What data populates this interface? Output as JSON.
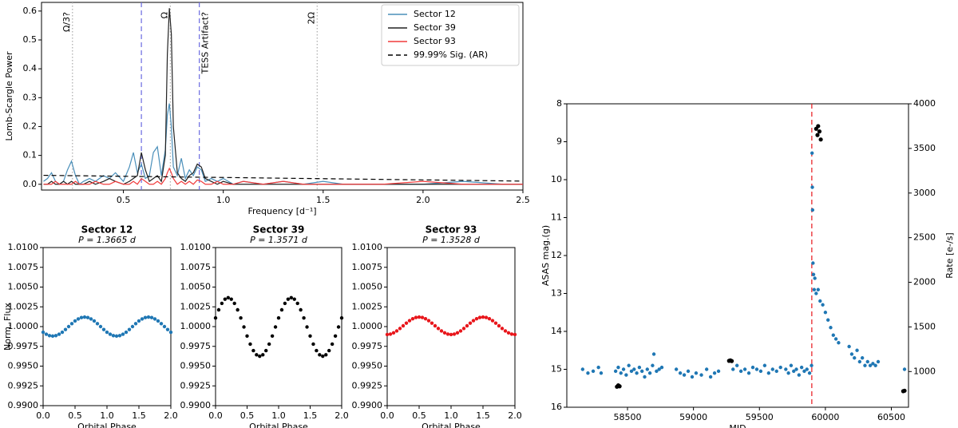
{
  "chart_data": [
    {
      "type": "line",
      "xlabel": "Frequency [d⁻¹]",
      "ylabel": "Lomb-Scargle Power",
      "xlim": [
        0.09,
        2.5
      ],
      "ylim": [
        -0.02,
        0.63
      ],
      "xticks": [
        0.5,
        {
          "value": 1,
          "label": "1.0"
        },
        1.5,
        {
          "value": 2,
          "label": "2.0"
        },
        2.5
      ],
      "yticks": [
        {
          "value": 0,
          "label": "0.0"
        },
        0.1,
        0.2,
        0.3,
        0.4,
        0.5,
        0.6
      ],
      "legend": "upper right",
      "x": [
        0.1,
        0.12,
        0.14,
        0.16,
        0.18,
        0.2,
        0.22,
        0.24,
        0.26,
        0.28,
        0.3,
        0.33,
        0.36,
        0.4,
        0.43,
        0.46,
        0.5,
        0.53,
        0.55,
        0.57,
        0.59,
        0.61,
        0.63,
        0.65,
        0.67,
        0.69,
        0.71,
        0.72,
        0.73,
        0.74,
        0.75,
        0.77,
        0.79,
        0.81,
        0.83,
        0.85,
        0.87,
        0.89,
        0.91,
        0.94,
        0.97,
        1.0,
        1.05,
        1.1,
        1.2,
        1.3,
        1.4,
        1.5,
        1.6,
        1.8,
        2.0,
        2.2,
        2.4,
        2.5
      ],
      "series": [
        {
          "name": "Sector 12",
          "color": "#4a8fba",
          "values": [
            0.01,
            0.02,
            0.04,
            0.01,
            0,
            0.01,
            0.05,
            0.08,
            0.03,
            0,
            0.01,
            0.02,
            0.01,
            0.03,
            0.02,
            0.04,
            0.01,
            0.06,
            0.11,
            0.04,
            0.07,
            0.02,
            0.03,
            0.11,
            0.13,
            0.03,
            0.12,
            0.24,
            0.28,
            0.2,
            0.06,
            0.03,
            0.09,
            0.02,
            0.05,
            0.03,
            0.06,
            0.05,
            0.01,
            0.02,
            0.01,
            0.02,
            0,
            0.01,
            0,
            0.01,
            0,
            0.01,
            0,
            0,
            0,
            0.01,
            0,
            0
          ]
        },
        {
          "name": "Sector 39",
          "color": "#222222",
          "values": [
            0,
            0,
            0.01,
            0,
            0,
            0.01,
            0,
            0.01,
            0,
            0,
            0,
            0.01,
            0,
            0.01,
            0.02,
            0.01,
            0,
            0.01,
            0.02,
            0.03,
            0.11,
            0.05,
            0.01,
            0.02,
            0.03,
            0.01,
            0.1,
            0.45,
            0.61,
            0.52,
            0.2,
            0.04,
            0.02,
            0.01,
            0.03,
            0.04,
            0.07,
            0.06,
            0.02,
            0.01,
            0,
            0.01,
            0,
            0,
            0,
            0,
            0,
            0,
            0,
            0,
            0,
            0,
            0,
            0
          ]
        },
        {
          "name": "Sector 93",
          "color": "#f03c3c",
          "values": [
            0,
            0,
            0,
            0.01,
            0,
            0,
            0,
            0,
            0.01,
            0,
            0,
            0,
            0.01,
            0,
            0,
            0.01,
            0,
            0,
            0.01,
            0,
            0.02,
            0.01,
            0,
            0,
            0.01,
            0,
            0.02,
            0.04,
            0.055,
            0.04,
            0.02,
            0,
            0.01,
            0,
            0.01,
            0,
            0.015,
            0.01,
            0,
            0,
            0.01,
            0,
            0,
            0.01,
            0,
            0.01,
            0,
            0,
            0,
            0,
            0.01,
            0,
            0,
            0
          ]
        },
        {
          "name": "99.99% Sig. (AR)",
          "color": "#000000",
          "linestyle": "dashed",
          "x": [
            0.1,
            2.5
          ],
          "values": [
            0.031,
            0.011
          ]
        }
      ],
      "vlines": [
        {
          "x": 0.245,
          "label": "Ω/3?",
          "color": "#aaaaaa",
          "dash": "dotted"
        },
        {
          "x": 0.735,
          "label": "Ω",
          "color": "#aaaaaa",
          "dash": "dotted"
        },
        {
          "x": 1.47,
          "label": "2Ω",
          "color": "#aaaaaa",
          "dash": "dotted"
        },
        {
          "x": 0.59,
          "color": "#6a6ae0",
          "dash": "dashed"
        },
        {
          "x": 0.88,
          "label": "TESS Artifact?",
          "color": "#6a6ae0",
          "dash": "dashed"
        }
      ]
    },
    {
      "type": "scatter",
      "title": "Sector 12",
      "subtitle": "P = 1.3665 d",
      "xlabel": "Orbital Phase",
      "ylabel": "Norm. Flux",
      "color": "#1f77b4",
      "xlim": [
        0,
        2
      ],
      "ylim": [
        0.99,
        1.01
      ],
      "xticks": [
        {
          "value": 0,
          "label": "0.0"
        },
        0.5,
        {
          "value": 1,
          "label": "1.0"
        },
        1.5,
        {
          "value": 2,
          "label": "2.0"
        }
      ],
      "yticks": [
        {
          "value": 0.99,
          "label": "0.9900"
        },
        {
          "value": 0.9925,
          "label": "0.9925"
        },
        {
          "value": 0.995,
          "label": "0.9950"
        },
        {
          "value": 0.9975,
          "label": "0.9975"
        },
        {
          "value": 1,
          "label": "1.0000"
        },
        {
          "value": 1.0025,
          "label": "1.0025"
        },
        {
          "value": 1.005,
          "label": "1.0050"
        },
        {
          "value": 1.0075,
          "label": "1.0075"
        },
        {
          "value": 1.01,
          "label": "1.0100"
        }
      ],
      "x": [
        0,
        0.05,
        0.1,
        0.15,
        0.2,
        0.25,
        0.3,
        0.35,
        0.4,
        0.45,
        0.5,
        0.55,
        0.6,
        0.65,
        0.7,
        0.75,
        0.8,
        0.85,
        0.9,
        0.95,
        1,
        1.05,
        1.1,
        1.15,
        1.2,
        1.25,
        1.3,
        1.35,
        1.4,
        1.45,
        1.5,
        1.55,
        1.6,
        1.65,
        1.7,
        1.75,
        1.8,
        1.85,
        1.9,
        1.95,
        2
      ],
      "values": [
        0.99929,
        0.99903,
        0.99886,
        0.9988,
        0.99886,
        0.99903,
        0.99929,
        0.99963,
        1,
        1.00037,
        1.00071,
        1.00097,
        1.00114,
        1.0012,
        1.00114,
        1.00097,
        1.00071,
        1.00037,
        1,
        0.99963,
        0.99929,
        0.99903,
        0.99886,
        0.9988,
        0.99886,
        0.99903,
        0.99929,
        0.99963,
        1,
        1.00037,
        1.00071,
        1.00097,
        1.00114,
        1.0012,
        1.00114,
        1.00097,
        1.00071,
        1.00037,
        1,
        0.99963,
        0.99929
      ]
    },
    {
      "type": "scatter",
      "title": "Sector 39",
      "subtitle": "P = 1.3571 d",
      "xlabel": "Orbital Phase",
      "color": "#000000",
      "xlim": [
        0,
        2
      ],
      "ylim": [
        0.99,
        1.01
      ],
      "xticks": [
        {
          "value": 0,
          "label": "0.0"
        },
        0.5,
        {
          "value": 1,
          "label": "1.0"
        },
        1.5,
        {
          "value": 2,
          "label": "2.0"
        }
      ],
      "yticks": [
        {
          "value": 0.99,
          "label": "0.9900"
        },
        {
          "value": 0.9925,
          "label": "0.9925"
        },
        {
          "value": 0.995,
          "label": "0.9950"
        },
        {
          "value": 0.9975,
          "label": "0.9975"
        },
        {
          "value": 1,
          "label": "1.0000"
        },
        {
          "value": 1.0025,
          "label": "1.0025"
        },
        {
          "value": 1.005,
          "label": "1.0050"
        },
        {
          "value": 1.0075,
          "label": "1.0075"
        },
        {
          "value": 1.01,
          "label": "1.0100"
        }
      ],
      "x": [
        0,
        0.05,
        0.1,
        0.15,
        0.2,
        0.25,
        0.3,
        0.35,
        0.4,
        0.45,
        0.5,
        0.55,
        0.6,
        0.65,
        0.7,
        0.75,
        0.8,
        0.85,
        0.9,
        0.95,
        1,
        1.05,
        1.1,
        1.15,
        1.2,
        1.25,
        1.3,
        1.35,
        1.4,
        1.45,
        1.5,
        1.55,
        1.6,
        1.65,
        1.7,
        1.75,
        1.8,
        1.85,
        1.9,
        1.95,
        2
      ],
      "values": [
        1.00109,
        1.00212,
        1.00294,
        1.00347,
        1.00365,
        1.00347,
        1.00294,
        1.00212,
        1.00109,
        0.99995,
        0.99881,
        0.99778,
        0.99696,
        0.99643,
        0.99625,
        0.99643,
        0.99696,
        0.99778,
        0.99881,
        0.99995,
        1.00109,
        1.00212,
        1.00294,
        1.00347,
        1.00365,
        1.00347,
        1.00294,
        1.00212,
        1.00109,
        0.99995,
        0.99881,
        0.99778,
        0.99696,
        0.99643,
        0.99625,
        0.99643,
        0.99696,
        0.99778,
        0.99881,
        0.99995,
        1.00109
      ]
    },
    {
      "type": "scatter",
      "title": "Sector 93",
      "subtitle": "P = 1.3528 d",
      "xlabel": "Orbital Phase",
      "color": "#e8161b",
      "xlim": [
        0,
        2
      ],
      "ylim": [
        0.99,
        1.01
      ],
      "xticks": [
        {
          "value": 0,
          "label": "0.0"
        },
        0.5,
        {
          "value": 1,
          "label": "1.0"
        },
        1.5,
        {
          "value": 2,
          "label": "2.0"
        }
      ],
      "yticks": [
        {
          "value": 0.99,
          "label": "0.9900"
        },
        {
          "value": 0.9925,
          "label": "0.9925"
        },
        {
          "value": 0.995,
          "label": "0.9950"
        },
        {
          "value": 0.9975,
          "label": "0.9975"
        },
        {
          "value": 1,
          "label": "1.0000"
        },
        {
          "value": 1.0025,
          "label": "1.0025"
        },
        {
          "value": 1.005,
          "label": "1.0050"
        },
        {
          "value": 1.0075,
          "label": "1.0075"
        },
        {
          "value": 1.01,
          "label": "1.0100"
        }
      ],
      "x": [
        0,
        0.05,
        0.1,
        0.15,
        0.2,
        0.25,
        0.3,
        0.35,
        0.4,
        0.45,
        0.5,
        0.55,
        0.6,
        0.65,
        0.7,
        0.75,
        0.8,
        0.85,
        0.9,
        0.95,
        1,
        1.05,
        1.1,
        1.15,
        1.2,
        1.25,
        1.3,
        1.35,
        1.4,
        1.45,
        1.5,
        1.55,
        1.6,
        1.65,
        1.7,
        1.75,
        1.8,
        1.85,
        1.9,
        1.95,
        2
      ],
      "values": [
        0.999,
        0.99905,
        0.99921,
        0.99945,
        0.99976,
        1.0001,
        1.00044,
        1.00075,
        1.00099,
        1.00115,
        1.0012,
        1.00115,
        1.00099,
        1.00075,
        1.00044,
        1.0001,
        0.99976,
        0.99945,
        0.99921,
        0.99905,
        0.999,
        0.99905,
        0.99921,
        0.99945,
        0.99976,
        1.0001,
        1.00044,
        1.00075,
        1.00099,
        1.00115,
        1.0012,
        1.00115,
        1.00099,
        1.00075,
        1.00044,
        1.0001,
        0.99976,
        0.99945,
        0.99921,
        0.99905,
        0.999
      ]
    },
    {
      "type": "scatter",
      "xlabel": "MJD",
      "ylabel": "ASAS mag.(g)",
      "y2label": "Rate [e-/s]",
      "xlim": [
        58040,
        60630
      ],
      "ylim": [
        16,
        8
      ],
      "y2lim": [
        600,
        4000
      ],
      "xticks": [
        58500,
        59000,
        59500,
        60000,
        60500
      ],
      "yticks": [
        8,
        9,
        10,
        11,
        12,
        13,
        14,
        15,
        16
      ],
      "y2ticks": [
        1000,
        1500,
        2000,
        2500,
        3000,
        3500,
        4000
      ],
      "vlines": [
        {
          "x": 59897,
          "color": "#e8161b",
          "dash": "dashed"
        }
      ],
      "series": [
        {
          "color": "#1f77b4",
          "x": [
            58160,
            58200,
            58240,
            58280,
            58300,
            58410,
            58430,
            58450,
            58470,
            58490,
            58510,
            58530,
            58550,
            58570,
            58590,
            58610,
            58630,
            58650,
            58670,
            58690,
            58700,
            58720,
            58740,
            58760,
            58870,
            58900,
            58930,
            58960,
            58990,
            59020,
            59060,
            59100,
            59130,
            59160,
            59190,
            59300,
            59330,
            59360,
            59390,
            59420,
            59450,
            59480,
            59510,
            59540,
            59570,
            59600,
            59630,
            59660,
            59700,
            59720,
            59740,
            59760,
            59780,
            59800,
            59820,
            59840,
            59860,
            59880,
            59895,
            59899,
            59901,
            59903,
            59906,
            59910,
            59915,
            59920,
            59930,
            59945,
            59960,
            59980,
            60000,
            60020,
            60040,
            60060,
            60080,
            60100,
            60180,
            60200,
            60220,
            60240,
            60260,
            60280,
            60300,
            60320,
            60340,
            60360,
            60380,
            60400,
            60600
          ],
          "values": [
            15.0,
            15.1,
            15.05,
            14.95,
            15.1,
            15.05,
            14.95,
            15.1,
            15.0,
            15.15,
            14.9,
            15.05,
            15.0,
            15.1,
            14.95,
            15.05,
            15.2,
            15.0,
            15.1,
            14.9,
            14.6,
            15.05,
            15.0,
            14.95,
            15.0,
            15.1,
            15.15,
            15.05,
            15.2,
            15.1,
            15.15,
            15.0,
            15.2,
            15.1,
            15.05,
            15.0,
            14.9,
            15.05,
            15.0,
            15.1,
            14.95,
            15.0,
            15.05,
            14.9,
            15.1,
            15.0,
            15.05,
            14.95,
            15.0,
            15.1,
            14.9,
            15.05,
            15.0,
            15.15,
            14.95,
            15.05,
            15.0,
            15.1,
            14.9,
            9.3,
            10.2,
            10.8,
            12.2,
            12.5,
            12.9,
            12.6,
            13.0,
            12.9,
            13.2,
            13.3,
            13.5,
            13.7,
            13.9,
            14.1,
            14.2,
            14.3,
            14.4,
            14.6,
            14.7,
            14.5,
            14.8,
            14.7,
            14.9,
            14.8,
            14.9,
            14.85,
            14.9,
            14.8,
            15.0
          ]
        },
        {
          "color": "#000000",
          "axis": "y2",
          "x": [
            58420,
            58430,
            58440,
            59270,
            59280,
            59290,
            59930,
            59940,
            59945,
            59955,
            59965,
            60590,
            60600
          ],
          "values": [
            830,
            845,
            835,
            1120,
            1125,
            1118,
            3720,
            3650,
            3750,
            3690,
            3600,
            780,
            785
          ]
        }
      ]
    }
  ]
}
